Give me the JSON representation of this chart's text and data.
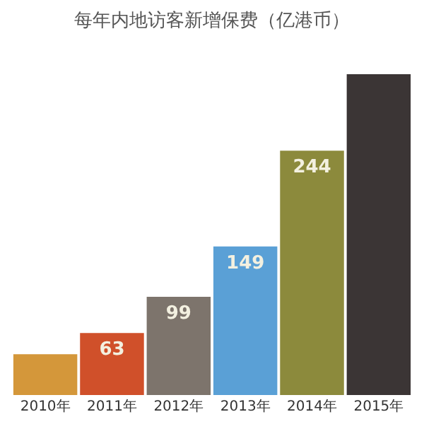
{
  "chart_data": {
    "type": "bar",
    "title": "每年内地访客新增保费（亿港币）",
    "categories": [
      "2010年",
      "2011年",
      "2012年",
      "2013年",
      "2014年",
      "2015年"
    ],
    "values": [
      42,
      63,
      99,
      149,
      244,
      320
    ],
    "value_labels": [
      null,
      "63",
      "99",
      "149",
      "244",
      null
    ],
    "colors": [
      "#d4973a",
      "#d0502a",
      "#7d746c",
      "#5aa0d6",
      "#8c8a3c",
      "#3b3535"
    ],
    "grid": false
  }
}
